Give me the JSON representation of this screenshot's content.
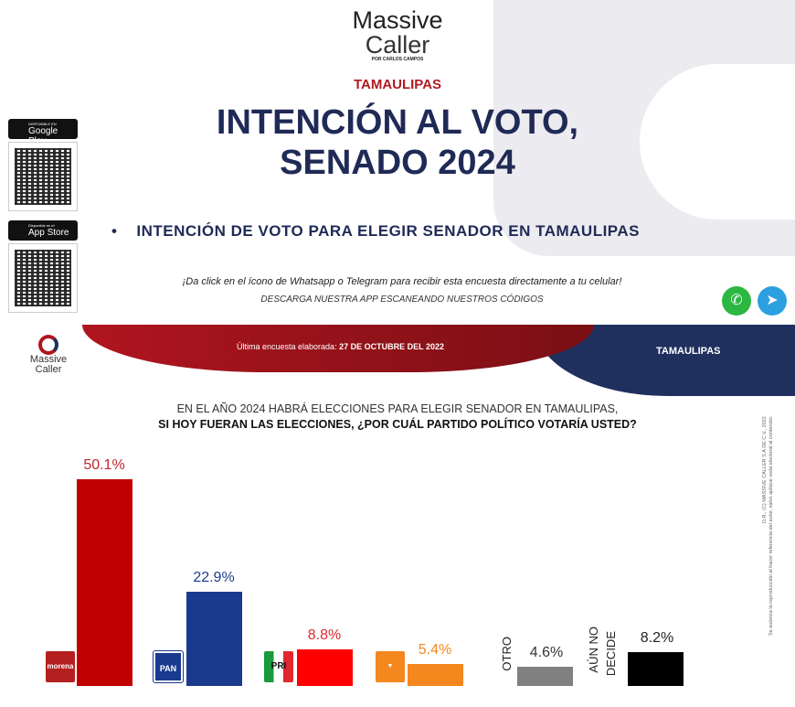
{
  "brand": {
    "line1": "Massive",
    "line2": "Caller",
    "tagline": "POR CARLOS CAMPOS"
  },
  "header": {
    "state": "TAMAULIPAS",
    "title_line1": "INTENCIÓN AL VOTO,",
    "title_line2": "SENADO 2024",
    "bullet": "INTENCIÓN DE VOTO PARA ELEGIR SENADOR EN TAMAULIPAS",
    "note1": "¡Da click en el ícono de Whatsapp o Telegram para recibir esta encuesta directamente a tu celular!",
    "note2": "DESCARGA NUESTRA APP ESCANEANDO NUESTROS CÓDIGOS"
  },
  "stores": {
    "google_small": "DISPONIBLE EN",
    "google": "Google Play",
    "apple_small": "Disponible en el",
    "apple": "App Store"
  },
  "band": {
    "last_label": "Última encuesta elaborada:",
    "last_date": "27 DE OCTUBRE DEL 2022",
    "state": "TAMAULIPAS"
  },
  "chart_data": {
    "type": "bar",
    "title": "EN EL AÑO 2024 HABRÁ ELECCIONES PARA ELEGIR SENADOR EN TAMAULIPAS,",
    "subtitle": "SI HOY FUERAN LAS ELECCIONES, ¿POR CUÁL PARTIDO POLÍTICO VOTARÍA USTED?",
    "categories": [
      "morena",
      "PAN",
      "PRI",
      "MC",
      "OTRO",
      "AÚN NO DECIDE"
    ],
    "values": [
      50.1,
      22.9,
      8.8,
      5.4,
      4.6,
      8.2
    ],
    "labels": [
      "50.1%",
      "22.9%",
      "8.8%",
      "5.4%",
      "4.6%",
      "8.2%"
    ],
    "colors": [
      "#c00000",
      "#1a3a8f",
      "#ff0000",
      "#f5871f",
      "#808080",
      "#000000"
    ],
    "label_colors": [
      "#c0272d",
      "#1f3a8a",
      "#e0282e",
      "#f5871f",
      "#333333",
      "#222222"
    ],
    "ylim": [
      0,
      55
    ]
  },
  "category_text": {
    "otro": "OTRO",
    "aun1": "AÚN NO",
    "aun2": "DECIDE"
  },
  "copyright": {
    "line1": "D.R., (C) MASSIVE CALLER S.A DE C.V., 2022",
    "line2": "Se autoriza la reproducción al hacer referencia del autor, salvo aplique veda electoral al contenido."
  }
}
